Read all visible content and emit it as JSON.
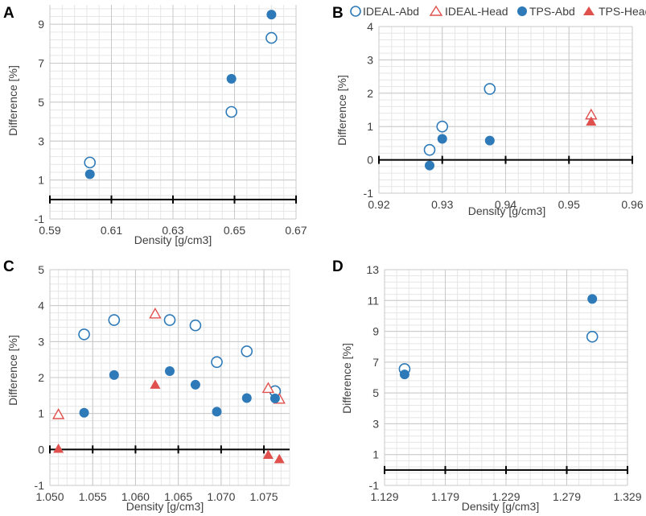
{
  "colors": {
    "blue": "#2e7ab8",
    "red": "#e0504d"
  },
  "legend": {
    "entries": [
      {
        "label": "IDEAL-Abd",
        "series": "IDEAL-Abd"
      },
      {
        "label": "IDEAL-Head",
        "series": "IDEAL-Head"
      },
      {
        "label": "TPS-Abd",
        "series": "TPS-Abd"
      },
      {
        "label": "TPS-Head",
        "series": "TPS-Head"
      }
    ]
  },
  "chart_data": [
    {
      "panel": "A",
      "type": "scatter",
      "xlabel": "Density [g/cm3]",
      "ylabel": "Difference [%]",
      "xlim": [
        0.59,
        0.67
      ],
      "ylim": [
        -1,
        10
      ],
      "x_ticks": [
        0.59,
        0.61,
        0.63,
        0.65,
        0.67
      ],
      "x_tick_labels": [
        "0.59",
        "0.61",
        "0.63",
        "0.65",
        "0.67"
      ],
      "y_ticks": [
        -1,
        1,
        3,
        5,
        7,
        9
      ],
      "y_tick_labels": [
        "-1",
        "1",
        "3",
        "5",
        "7",
        "9"
      ],
      "series": [
        {
          "name": "IDEAL-Abd",
          "points": [
            [
              0.603,
              1.9
            ],
            [
              0.649,
              4.5
            ],
            [
              0.662,
              8.3
            ]
          ]
        },
        {
          "name": "TPS-Abd",
          "points": [
            [
              0.603,
              1.3
            ],
            [
              0.649,
              6.2
            ],
            [
              0.662,
              9.5
            ]
          ]
        }
      ]
    },
    {
      "panel": "B",
      "type": "scatter",
      "xlabel": "Density [g/cm3]",
      "ylabel": "Difference [%]",
      "xlim": [
        0.92,
        0.96
      ],
      "ylim": [
        -1,
        4
      ],
      "x_ticks": [
        0.92,
        0.93,
        0.94,
        0.95,
        0.96
      ],
      "x_tick_labels": [
        "0.92",
        "0.93",
        "0.94",
        "0.95",
        "0.96"
      ],
      "y_ticks": [
        -1,
        0,
        1,
        2,
        3,
        4
      ],
      "y_tick_labels": [
        "-1",
        "0",
        "1",
        "2",
        "3",
        "4"
      ],
      "series": [
        {
          "name": "IDEAL-Abd",
          "points": [
            [
              0.928,
              0.3
            ],
            [
              0.93,
              1.0
            ],
            [
              0.9375,
              2.13
            ]
          ]
        },
        {
          "name": "IDEAL-Head",
          "points": [
            [
              0.9535,
              1.35
            ]
          ]
        },
        {
          "name": "TPS-Abd",
          "points": [
            [
              0.928,
              -0.17
            ],
            [
              0.93,
              0.63
            ],
            [
              0.9375,
              0.58
            ]
          ]
        },
        {
          "name": "TPS-Head",
          "points": [
            [
              0.9535,
              1.15
            ]
          ]
        }
      ]
    },
    {
      "panel": "C",
      "type": "scatter",
      "xlabel": "Density [g/cm3]",
      "ylabel": "Difference [%]",
      "xlim": [
        1.05,
        1.078
      ],
      "ylim": [
        -1,
        5
      ],
      "x_ticks": [
        1.05,
        1.055,
        1.06,
        1.065,
        1.07,
        1.075
      ],
      "x_tick_labels": [
        "1.050",
        "1.055",
        "1.060",
        "1.065",
        "1.070",
        "1.075"
      ],
      "y_ticks": [
        -1,
        0,
        1,
        2,
        3,
        4,
        5
      ],
      "y_tick_labels": [
        "-1",
        "0",
        "1",
        "2",
        "3",
        "4",
        "5"
      ],
      "series": [
        {
          "name": "IDEAL-Abd",
          "points": [
            [
              1.054,
              3.2
            ],
            [
              1.0575,
              3.6
            ],
            [
              1.064,
              3.6
            ],
            [
              1.067,
              3.45
            ],
            [
              1.0695,
              2.43
            ],
            [
              1.073,
              2.73
            ],
            [
              1.0763,
              1.62
            ]
          ]
        },
        {
          "name": "IDEAL-Head",
          "points": [
            [
              1.051,
              0.97
            ],
            [
              1.0623,
              3.77
            ],
            [
              1.0755,
              1.7
            ],
            [
              1.0768,
              1.4
            ]
          ]
        },
        {
          "name": "TPS-Abd",
          "points": [
            [
              1.054,
              1.02
            ],
            [
              1.0575,
              2.07
            ],
            [
              1.064,
              2.18
            ],
            [
              1.067,
              1.8
            ],
            [
              1.0695,
              1.05
            ],
            [
              1.073,
              1.43
            ],
            [
              1.0763,
              1.42
            ]
          ]
        },
        {
          "name": "TPS-Head",
          "points": [
            [
              1.051,
              0.02
            ],
            [
              1.0623,
              1.8
            ],
            [
              1.0755,
              -0.15
            ],
            [
              1.0768,
              -0.27
            ]
          ]
        }
      ]
    },
    {
      "panel": "D",
      "type": "scatter",
      "xlabel": "Density [g/cm3]",
      "ylabel": "Difference [%]",
      "xlim": [
        1.129,
        1.329
      ],
      "ylim": [
        -1,
        13
      ],
      "x_ticks": [
        1.129,
        1.179,
        1.229,
        1.279,
        1.329
      ],
      "x_tick_labels": [
        "1.129",
        "1.179",
        "1.229",
        "1.279",
        "1.329"
      ],
      "y_ticks": [
        -1,
        1,
        3,
        5,
        7,
        9,
        11,
        13
      ],
      "y_tick_labels": [
        "-1",
        "1",
        "3",
        "5",
        "7",
        "9",
        "11",
        "13"
      ],
      "series": [
        {
          "name": "IDEAL-Abd",
          "points": [
            [
              1.1455,
              6.55
            ],
            [
              1.3,
              8.65
            ]
          ]
        },
        {
          "name": "TPS-Abd",
          "points": [
            [
              1.1455,
              6.2
            ],
            [
              1.3,
              11.1
            ]
          ]
        }
      ]
    }
  ]
}
